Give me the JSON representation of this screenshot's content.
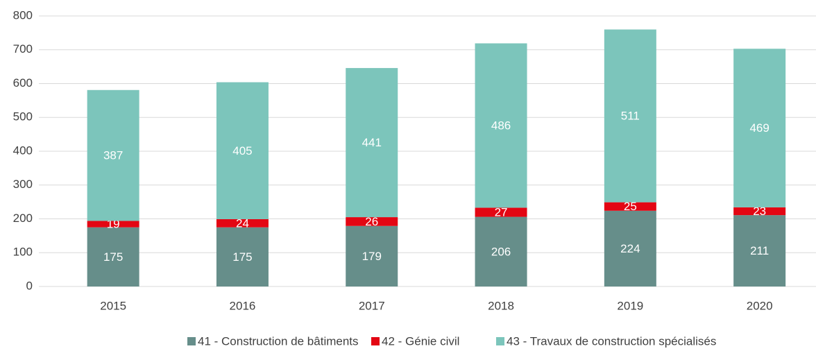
{
  "chart_data": {
    "type": "stacked_bar",
    "categories": [
      "2015",
      "2016",
      "2017",
      "2018",
      "2019",
      "2020"
    ],
    "series": [
      {
        "name": "41 - Construction de bâtiments",
        "color": "#668e8a",
        "values": [
          175,
          175,
          179,
          206,
          224,
          211
        ]
      },
      {
        "name": "42 - Génie civil",
        "color": "#e30613",
        "values": [
          19,
          24,
          26,
          27,
          25,
          23
        ]
      },
      {
        "name": "43 - Travaux de construction spécialisés",
        "color": "#7cc5bb",
        "values": [
          387,
          405,
          441,
          486,
          511,
          469
        ]
      }
    ],
    "ylim": [
      0,
      800
    ],
    "yticks": [
      0,
      100,
      200,
      300,
      400,
      500,
      600,
      700,
      800
    ],
    "grid": true,
    "legend": "bottom"
  }
}
